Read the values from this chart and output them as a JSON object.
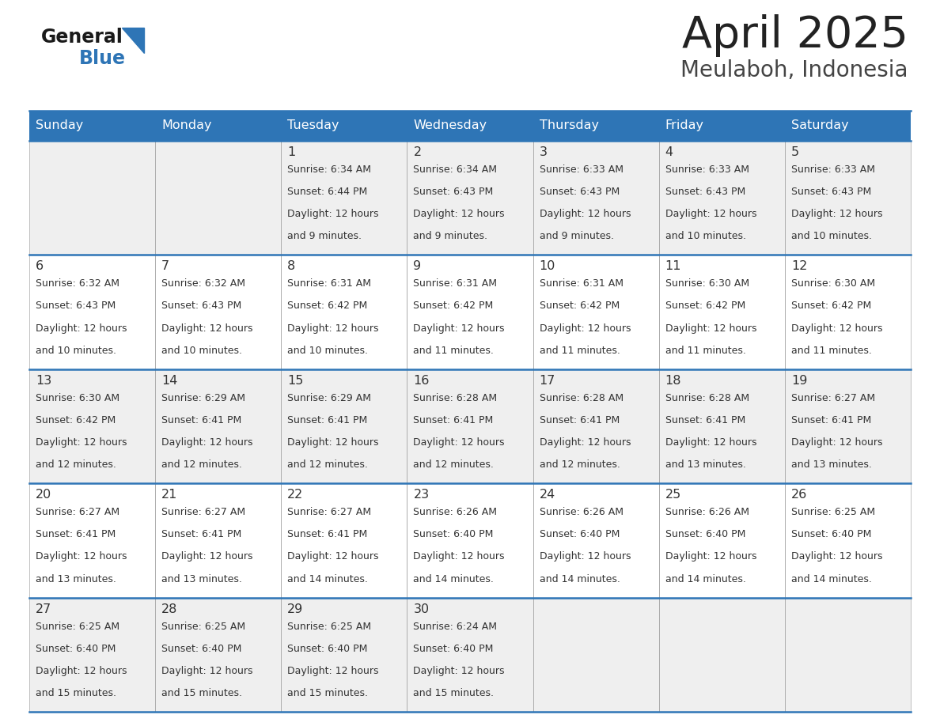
{
  "title": "April 2025",
  "subtitle": "Meulaboh, Indonesia",
  "days_of_week": [
    "Sunday",
    "Monday",
    "Tuesday",
    "Wednesday",
    "Thursday",
    "Friday",
    "Saturday"
  ],
  "header_bg": "#2E75B6",
  "header_text_color": "#FFFFFF",
  "cell_bg_odd": "#EFEFEF",
  "cell_bg_even": "#FFFFFF",
  "row_border_color": "#2E75B6",
  "cell_border_color": "#AAAAAA",
  "text_color": "#333333",
  "logo_general_color": "#1a1a1a",
  "logo_blue_color": "#2E75B6",
  "title_color": "#222222",
  "subtitle_color": "#444444",
  "calendar_data": [
    [
      {
        "day": null,
        "sunrise": null,
        "sunset": null,
        "daylight_mins": null
      },
      {
        "day": null,
        "sunrise": null,
        "sunset": null,
        "daylight_mins": null
      },
      {
        "day": 1,
        "sunrise": "6:34 AM",
        "sunset": "6:44 PM",
        "daylight_mins": 9
      },
      {
        "day": 2,
        "sunrise": "6:34 AM",
        "sunset": "6:43 PM",
        "daylight_mins": 9
      },
      {
        "day": 3,
        "sunrise": "6:33 AM",
        "sunset": "6:43 PM",
        "daylight_mins": 9
      },
      {
        "day": 4,
        "sunrise": "6:33 AM",
        "sunset": "6:43 PM",
        "daylight_mins": 10
      },
      {
        "day": 5,
        "sunrise": "6:33 AM",
        "sunset": "6:43 PM",
        "daylight_mins": 10
      }
    ],
    [
      {
        "day": 6,
        "sunrise": "6:32 AM",
        "sunset": "6:43 PM",
        "daylight_mins": 10
      },
      {
        "day": 7,
        "sunrise": "6:32 AM",
        "sunset": "6:43 PM",
        "daylight_mins": 10
      },
      {
        "day": 8,
        "sunrise": "6:31 AM",
        "sunset": "6:42 PM",
        "daylight_mins": 10
      },
      {
        "day": 9,
        "sunrise": "6:31 AM",
        "sunset": "6:42 PM",
        "daylight_mins": 11
      },
      {
        "day": 10,
        "sunrise": "6:31 AM",
        "sunset": "6:42 PM",
        "daylight_mins": 11
      },
      {
        "day": 11,
        "sunrise": "6:30 AM",
        "sunset": "6:42 PM",
        "daylight_mins": 11
      },
      {
        "day": 12,
        "sunrise": "6:30 AM",
        "sunset": "6:42 PM",
        "daylight_mins": 11
      }
    ],
    [
      {
        "day": 13,
        "sunrise": "6:30 AM",
        "sunset": "6:42 PM",
        "daylight_mins": 12
      },
      {
        "day": 14,
        "sunrise": "6:29 AM",
        "sunset": "6:41 PM",
        "daylight_mins": 12
      },
      {
        "day": 15,
        "sunrise": "6:29 AM",
        "sunset": "6:41 PM",
        "daylight_mins": 12
      },
      {
        "day": 16,
        "sunrise": "6:28 AM",
        "sunset": "6:41 PM",
        "daylight_mins": 12
      },
      {
        "day": 17,
        "sunrise": "6:28 AM",
        "sunset": "6:41 PM",
        "daylight_mins": 12
      },
      {
        "day": 18,
        "sunrise": "6:28 AM",
        "sunset": "6:41 PM",
        "daylight_mins": 13
      },
      {
        "day": 19,
        "sunrise": "6:27 AM",
        "sunset": "6:41 PM",
        "daylight_mins": 13
      }
    ],
    [
      {
        "day": 20,
        "sunrise": "6:27 AM",
        "sunset": "6:41 PM",
        "daylight_mins": 13
      },
      {
        "day": 21,
        "sunrise": "6:27 AM",
        "sunset": "6:41 PM",
        "daylight_mins": 13
      },
      {
        "day": 22,
        "sunrise": "6:27 AM",
        "sunset": "6:41 PM",
        "daylight_mins": 14
      },
      {
        "day": 23,
        "sunrise": "6:26 AM",
        "sunset": "6:40 PM",
        "daylight_mins": 14
      },
      {
        "day": 24,
        "sunrise": "6:26 AM",
        "sunset": "6:40 PM",
        "daylight_mins": 14
      },
      {
        "day": 25,
        "sunrise": "6:26 AM",
        "sunset": "6:40 PM",
        "daylight_mins": 14
      },
      {
        "day": 26,
        "sunrise": "6:25 AM",
        "sunset": "6:40 PM",
        "daylight_mins": 14
      }
    ],
    [
      {
        "day": 27,
        "sunrise": "6:25 AM",
        "sunset": "6:40 PM",
        "daylight_mins": 15
      },
      {
        "day": 28,
        "sunrise": "6:25 AM",
        "sunset": "6:40 PM",
        "daylight_mins": 15
      },
      {
        "day": 29,
        "sunrise": "6:25 AM",
        "sunset": "6:40 PM",
        "daylight_mins": 15
      },
      {
        "day": 30,
        "sunrise": "6:24 AM",
        "sunset": "6:40 PM",
        "daylight_mins": 15
      },
      {
        "day": null,
        "sunrise": null,
        "sunset": null,
        "daylight_mins": null
      },
      {
        "day": null,
        "sunrise": null,
        "sunset": null,
        "daylight_mins": null
      },
      {
        "day": null,
        "sunrise": null,
        "sunset": null,
        "daylight_mins": null
      }
    ]
  ]
}
